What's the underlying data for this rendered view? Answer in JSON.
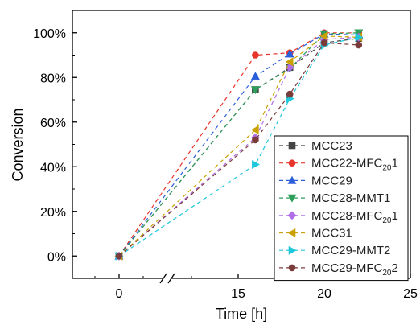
{
  "chart_data": {
    "type": "line",
    "xlabel": "Time [h]",
    "ylabel": "Conversion",
    "x_ticks": [
      "0",
      "15",
      "20",
      "25"
    ],
    "y_ticks": [
      "0%",
      "20%",
      "40%",
      "60%",
      "80%",
      "100%"
    ],
    "ylim": [
      -10,
      110
    ],
    "x_axis_break": "between 0 and 15",
    "legend_position": "bottom-right",
    "grid": false,
    "series": [
      {
        "name": "MCC23",
        "name_main": "MCC23",
        "name_sub": "",
        "name_tail": "",
        "color": "#444444",
        "marker": "square",
        "points": [
          {
            "x": 0,
            "y": 0
          },
          {
            "x": 16,
            "y": 74.5
          },
          {
            "x": 18,
            "y": 84.5
          },
          {
            "x": 20,
            "y": 95.5
          },
          {
            "x": 22,
            "y": 97.5
          }
        ]
      },
      {
        "name": "MCC22-MFC201",
        "name_main": "MCC22-MFC",
        "name_sub": "20",
        "name_tail": "1",
        "color": "#e8352b",
        "marker": "circle",
        "points": [
          {
            "x": 0,
            "y": 0
          },
          {
            "x": 16,
            "y": 90
          },
          {
            "x": 18,
            "y": 91
          },
          {
            "x": 20,
            "y": 100
          },
          {
            "x": 22,
            "y": 100
          }
        ]
      },
      {
        "name": "MCC29",
        "name_main": "MCC29",
        "name_sub": "",
        "name_tail": "",
        "color": "#2b5fd9",
        "marker": "triangle-up",
        "points": [
          {
            "x": 0,
            "y": 0
          },
          {
            "x": 16,
            "y": 80.5
          },
          {
            "x": 18,
            "y": 90.5
          },
          {
            "x": 20,
            "y": 99.5
          },
          {
            "x": 22,
            "y": 99
          }
        ]
      },
      {
        "name": "MCC28-MMT1",
        "name_main": "MCC28-MMT1",
        "name_sub": "",
        "name_tail": "",
        "color": "#2e9e5b",
        "marker": "triangle-down",
        "points": [
          {
            "x": 0,
            "y": 0
          },
          {
            "x": 16,
            "y": 74.5
          },
          {
            "x": 18,
            "y": 84
          },
          {
            "x": 20,
            "y": 99.5
          },
          {
            "x": 22,
            "y": 100
          }
        ]
      },
      {
        "name": "MCC28-MFC201",
        "name_main": "MCC28-MFC",
        "name_sub": "20",
        "name_tail": "1",
        "color": "#b06ee8",
        "marker": "diamond",
        "points": [
          {
            "x": 0,
            "y": 0
          },
          {
            "x": 16,
            "y": 53
          },
          {
            "x": 18,
            "y": 84.5
          },
          {
            "x": 20,
            "y": 97
          },
          {
            "x": 22,
            "y": 98
          }
        ]
      },
      {
        "name": "MCC31",
        "name_main": "MCC31",
        "name_sub": "",
        "name_tail": "",
        "color": "#c9a100",
        "marker": "triangle-left",
        "points": [
          {
            "x": 0,
            "y": 0
          },
          {
            "x": 16,
            "y": 56.5
          },
          {
            "x": 18,
            "y": 87
          },
          {
            "x": 20,
            "y": 98.5
          },
          {
            "x": 22,
            "y": 98
          }
        ]
      },
      {
        "name": "MCC29-MMT2",
        "name_main": "MCC29-MMT2",
        "name_sub": "",
        "name_tail": "",
        "color": "#1fc7db",
        "marker": "triangle-right",
        "points": [
          {
            "x": 0,
            "y": 0
          },
          {
            "x": 16,
            "y": 41
          },
          {
            "x": 18,
            "y": 70.5
          },
          {
            "x": 20,
            "y": 94.5
          },
          {
            "x": 22,
            "y": 98
          }
        ]
      },
      {
        "name": "MCC29-MFC202",
        "name_main": "MCC29-MFC",
        "name_sub": "20",
        "name_tail": "2",
        "color": "#7a3b3b",
        "marker": "circle",
        "points": [
          {
            "x": 0,
            "y": 0
          },
          {
            "x": 16,
            "y": 52
          },
          {
            "x": 18,
            "y": 72.5
          },
          {
            "x": 20,
            "y": 95.5
          },
          {
            "x": 22,
            "y": 94.5
          }
        ]
      }
    ]
  }
}
